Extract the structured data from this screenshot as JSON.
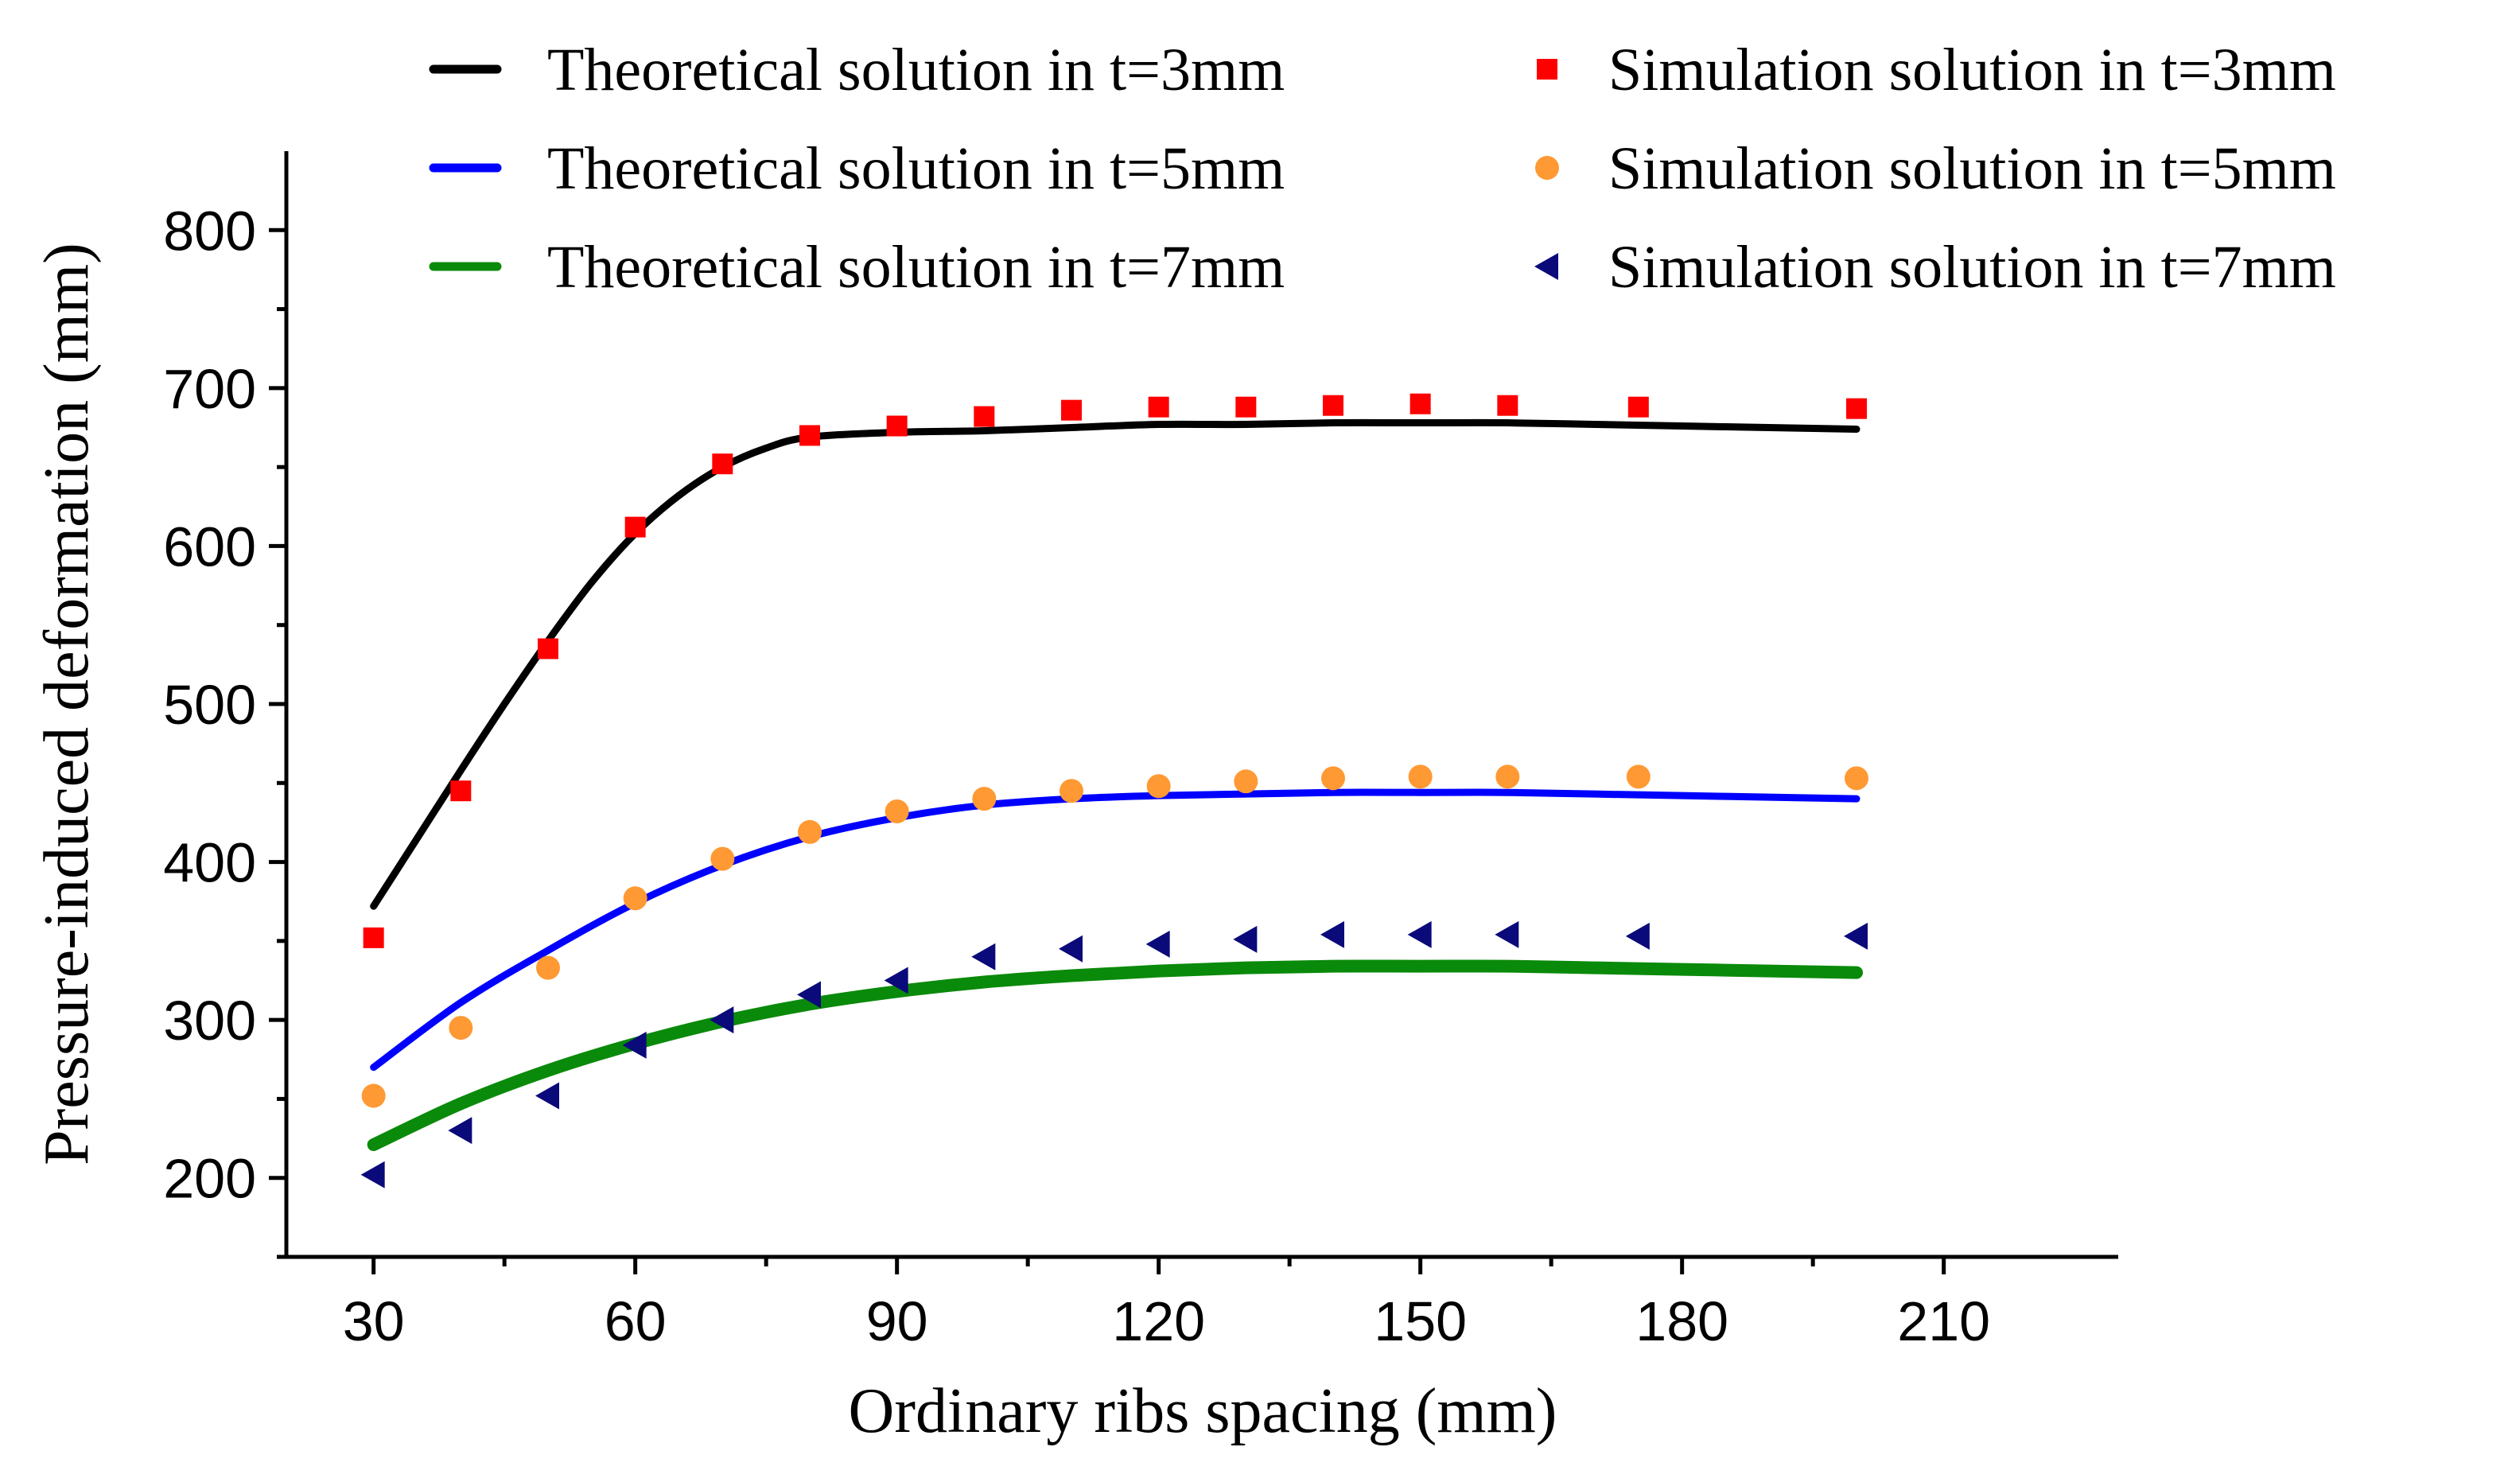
{
  "chart_data": {
    "type": "line",
    "title": "",
    "xlabel": "Ordinary ribs spacing (mm)",
    "ylabel": "Pressure-induced deformation (mm)",
    "xlim": [
      20,
      230
    ],
    "ylim": [
      150,
      850
    ],
    "xticks": [
      30,
      60,
      90,
      120,
      150,
      180,
      210
    ],
    "yticks": [
      200,
      300,
      400,
      500,
      600,
      700,
      800
    ],
    "legend_position": "top",
    "series": [
      {
        "name": "Theoretical solution in t=3mm",
        "kind": "line",
        "color": "#000000",
        "x": [
          30,
          35,
          40,
          45,
          50,
          55,
          60,
          65,
          70,
          75,
          80,
          90,
          100,
          110,
          120,
          130,
          140,
          150,
          160,
          170,
          180,
          190,
          200
        ],
        "y": [
          372,
          415,
          458,
          500,
          540,
          577,
          608,
          632,
          650,
          662,
          669,
          672,
          673,
          675,
          677,
          677,
          678,
          678,
          678,
          677,
          676,
          675,
          674
        ]
      },
      {
        "name": "Theoretical solution in t=5mm",
        "kind": "line",
        "color": "#0000ff",
        "x": [
          30,
          40,
          50,
          60,
          70,
          80,
          90,
          100,
          110,
          120,
          130,
          140,
          150,
          160,
          170,
          180,
          190,
          200
        ],
        "y": [
          270,
          311,
          344,
          374,
          398,
          416,
          428,
          436,
          440,
          442,
          443,
          444,
          444,
          444,
          443,
          442,
          441,
          440
        ]
      },
      {
        "name": "Theoretical solution in t=7mm",
        "kind": "line",
        "color": "#0a8a0a",
        "x": [
          30,
          40,
          50,
          60,
          70,
          80,
          90,
          100,
          110,
          120,
          130,
          140,
          150,
          160,
          170,
          180,
          190,
          200
        ],
        "y": [
          221,
          247,
          268,
          285,
          299,
          310,
          318,
          324,
          328,
          331,
          333,
          334,
          334,
          334,
          333,
          332,
          331,
          330
        ]
      },
      {
        "name": "Simulation solution in t=3mm",
        "kind": "square",
        "color": "#ff0000",
        "x": [
          30,
          40,
          50,
          60,
          70,
          80,
          90,
          100,
          110,
          120,
          130,
          140,
          150,
          160,
          175,
          200
        ],
        "y": [
          352,
          445,
          535,
          612,
          652,
          670,
          676,
          682,
          686,
          688,
          688,
          689,
          690,
          689,
          688,
          687
        ]
      },
      {
        "name": "Simulation solution in t=5mm",
        "kind": "circle",
        "color": "#ff9933",
        "x": [
          30,
          40,
          50,
          60,
          70,
          80,
          90,
          100,
          110,
          120,
          130,
          140,
          150,
          160,
          175,
          200
        ],
        "y": [
          252,
          295,
          333,
          377,
          402,
          419,
          432,
          440,
          445,
          448,
          451,
          453,
          454,
          454,
          454,
          453
        ]
      },
      {
        "name": "Simulation solution in t=7mm",
        "kind": "triangle-left",
        "color": "#0a0a7a",
        "x": [
          30,
          40,
          50,
          60,
          70,
          80,
          90,
          100,
          110,
          120,
          130,
          140,
          150,
          160,
          175,
          200
        ],
        "y": [
          202,
          230,
          252,
          284,
          300,
          316,
          325,
          340,
          345,
          348,
          351,
          354,
          354,
          354,
          353,
          353
        ]
      }
    ]
  }
}
